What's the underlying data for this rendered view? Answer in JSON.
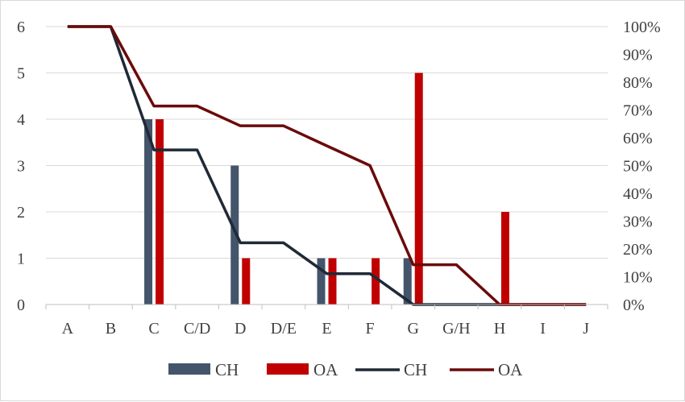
{
  "chart_data": {
    "type": "bar",
    "title": "",
    "xlabel": "",
    "ylabel": "",
    "categories": [
      "A",
      "B",
      "C",
      "C/D",
      "D",
      "D/E",
      "E",
      "F",
      "G",
      "G/H",
      "H",
      "I",
      "J"
    ],
    "ylim": [
      0,
      6
    ],
    "y_ticks": [
      "0",
      "1",
      "2",
      "3",
      "4",
      "5",
      "6"
    ],
    "y2lim": [
      0,
      100
    ],
    "y2_ticks": [
      "0%",
      "10%",
      "20%",
      "30%",
      "40%",
      "50%",
      "60%",
      "70%",
      "80%",
      "90%",
      "100%"
    ],
    "grid": true,
    "legend_position": "bottom",
    "series": [
      {
        "name": "CH",
        "type": "bar",
        "axis": "left",
        "color": "#44546a",
        "values": [
          0,
          0,
          4,
          0,
          3,
          0,
          1,
          0,
          1,
          0,
          0,
          0,
          0
        ]
      },
      {
        "name": "OA",
        "type": "bar",
        "axis": "left",
        "color": "#c00000",
        "values": [
          0,
          0,
          4,
          0,
          1,
          0,
          1,
          1,
          5,
          0,
          2,
          0,
          0
        ]
      },
      {
        "name": "CH",
        "type": "line",
        "axis": "right",
        "color": "#1f2937",
        "values": [
          100,
          100,
          55.6,
          55.6,
          22.2,
          22.2,
          11.1,
          11.1,
          0,
          0,
          0,
          0,
          0
        ]
      },
      {
        "name": "OA",
        "type": "line",
        "axis": "right",
        "color": "#6b0a0a",
        "values": [
          100,
          100,
          71.4,
          71.4,
          64.3,
          64.3,
          57.1,
          50,
          14.3,
          14.3,
          0,
          0,
          0
        ]
      }
    ]
  }
}
